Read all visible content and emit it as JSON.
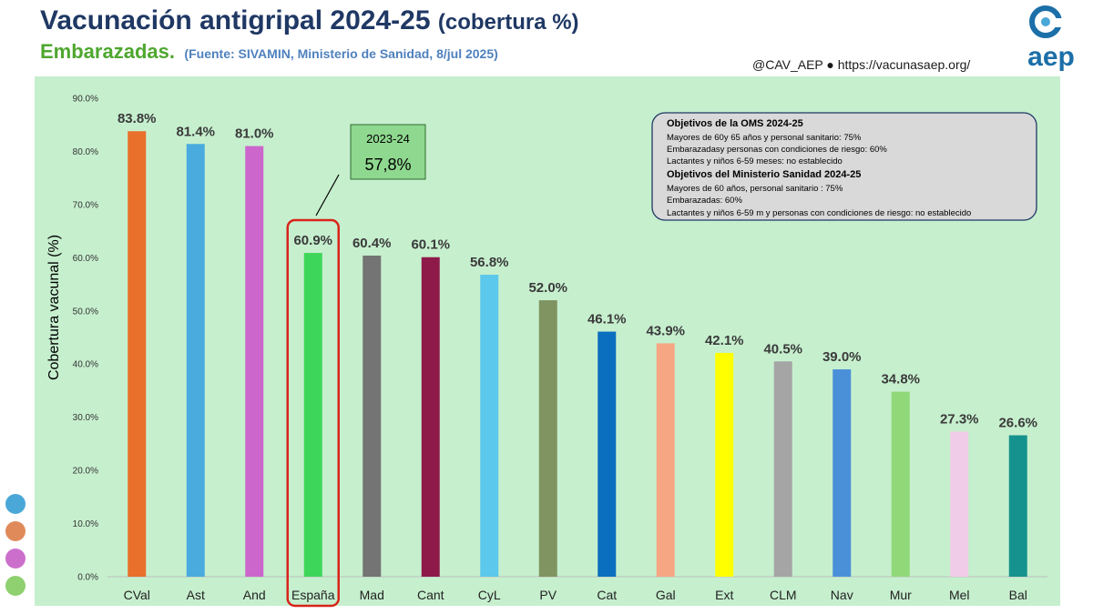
{
  "header": {
    "title": "Vacunación antigripal 2024-25",
    "title_suffix": "(cobertura %)",
    "group": "Embarazadas.",
    "source": "(Fuente: SIVAMIN, Ministerio de Sanidad, 8/jul 2025)",
    "social": "@CAV_AEP ● https://vacunasaep.org/",
    "logo_text": "aep"
  },
  "colors": {
    "panel_bg": "#c6efce",
    "title": "#1f3864",
    "group": "#4ea72e",
    "source": "#4f81bd",
    "highlight_box": "#d9231a",
    "callout_bg": "#8fd88f",
    "logo": "#1c6fa8",
    "deco_dots": [
      "#4aa8d8",
      "#e08a5a",
      "#cc6fcc",
      "#8fd070"
    ]
  },
  "callout": {
    "label": "2023-24",
    "value": "57,8%"
  },
  "objectives": {
    "oms_title": "Objetivos de la OMS 2024-25",
    "oms_lines": [
      "Mayores de 60y 65 años y personal sanitario: 75%",
      "Embarazadasy personas con condiciones de riesgo: 60%",
      "Lactantes y niños 6-59 meses: no establecido"
    ],
    "ms_title": "Objetivos del Ministerio Sanidad 2024-25",
    "ms_lines": [
      "Mayores de 60 años, personal sanitario : 75%",
      "Embarazadas: 60%",
      "Lactantes y niños 6-59 m y personas con condiciones de riesgo: no establecido"
    ]
  },
  "chart_data": {
    "type": "bar",
    "title": "",
    "xlabel": "",
    "ylabel": "Cobertura vacunal (%)",
    "ylim": [
      0,
      90
    ],
    "yticks": [
      "0.0%",
      "10.0%",
      "20.0%",
      "30.0%",
      "40.0%",
      "50.0%",
      "60.0%",
      "70.0%",
      "80.0%",
      "90.0%"
    ],
    "grid": false,
    "legend": "none",
    "highlight_category": "España",
    "categories": [
      "CVal",
      "Ast",
      "And",
      "España",
      "Mad",
      "Cant",
      "CyL",
      "PV",
      "Cat",
      "Gal",
      "Ext",
      "CLM",
      "Nav",
      "Mur",
      "Mel",
      "Bal"
    ],
    "values": [
      83.8,
      81.4,
      81.0,
      60.9,
      60.4,
      60.1,
      56.8,
      52.0,
      46.1,
      43.9,
      42.1,
      40.5,
      39.0,
      34.8,
      27.3,
      26.6
    ],
    "labels": [
      "83.8%",
      "81.4%",
      "81.0%",
      "60.9%",
      "60.4%",
      "60.1%",
      "56.8%",
      "52.0%",
      "46.1%",
      "43.9%",
      "42.1%",
      "40.5%",
      "39.0%",
      "34.8%",
      "27.3%",
      "26.6%"
    ],
    "bar_colors": [
      "#e8702a",
      "#4aabdf",
      "#cc66cc",
      "#3ed65a",
      "#747474",
      "#8e1a4a",
      "#5bc8ec",
      "#7f9460",
      "#0a6fbe",
      "#f7a684",
      "#ffff00",
      "#a5a5a5",
      "#4a90d9",
      "#90d878",
      "#f0cce8",
      "#16928e"
    ]
  }
}
